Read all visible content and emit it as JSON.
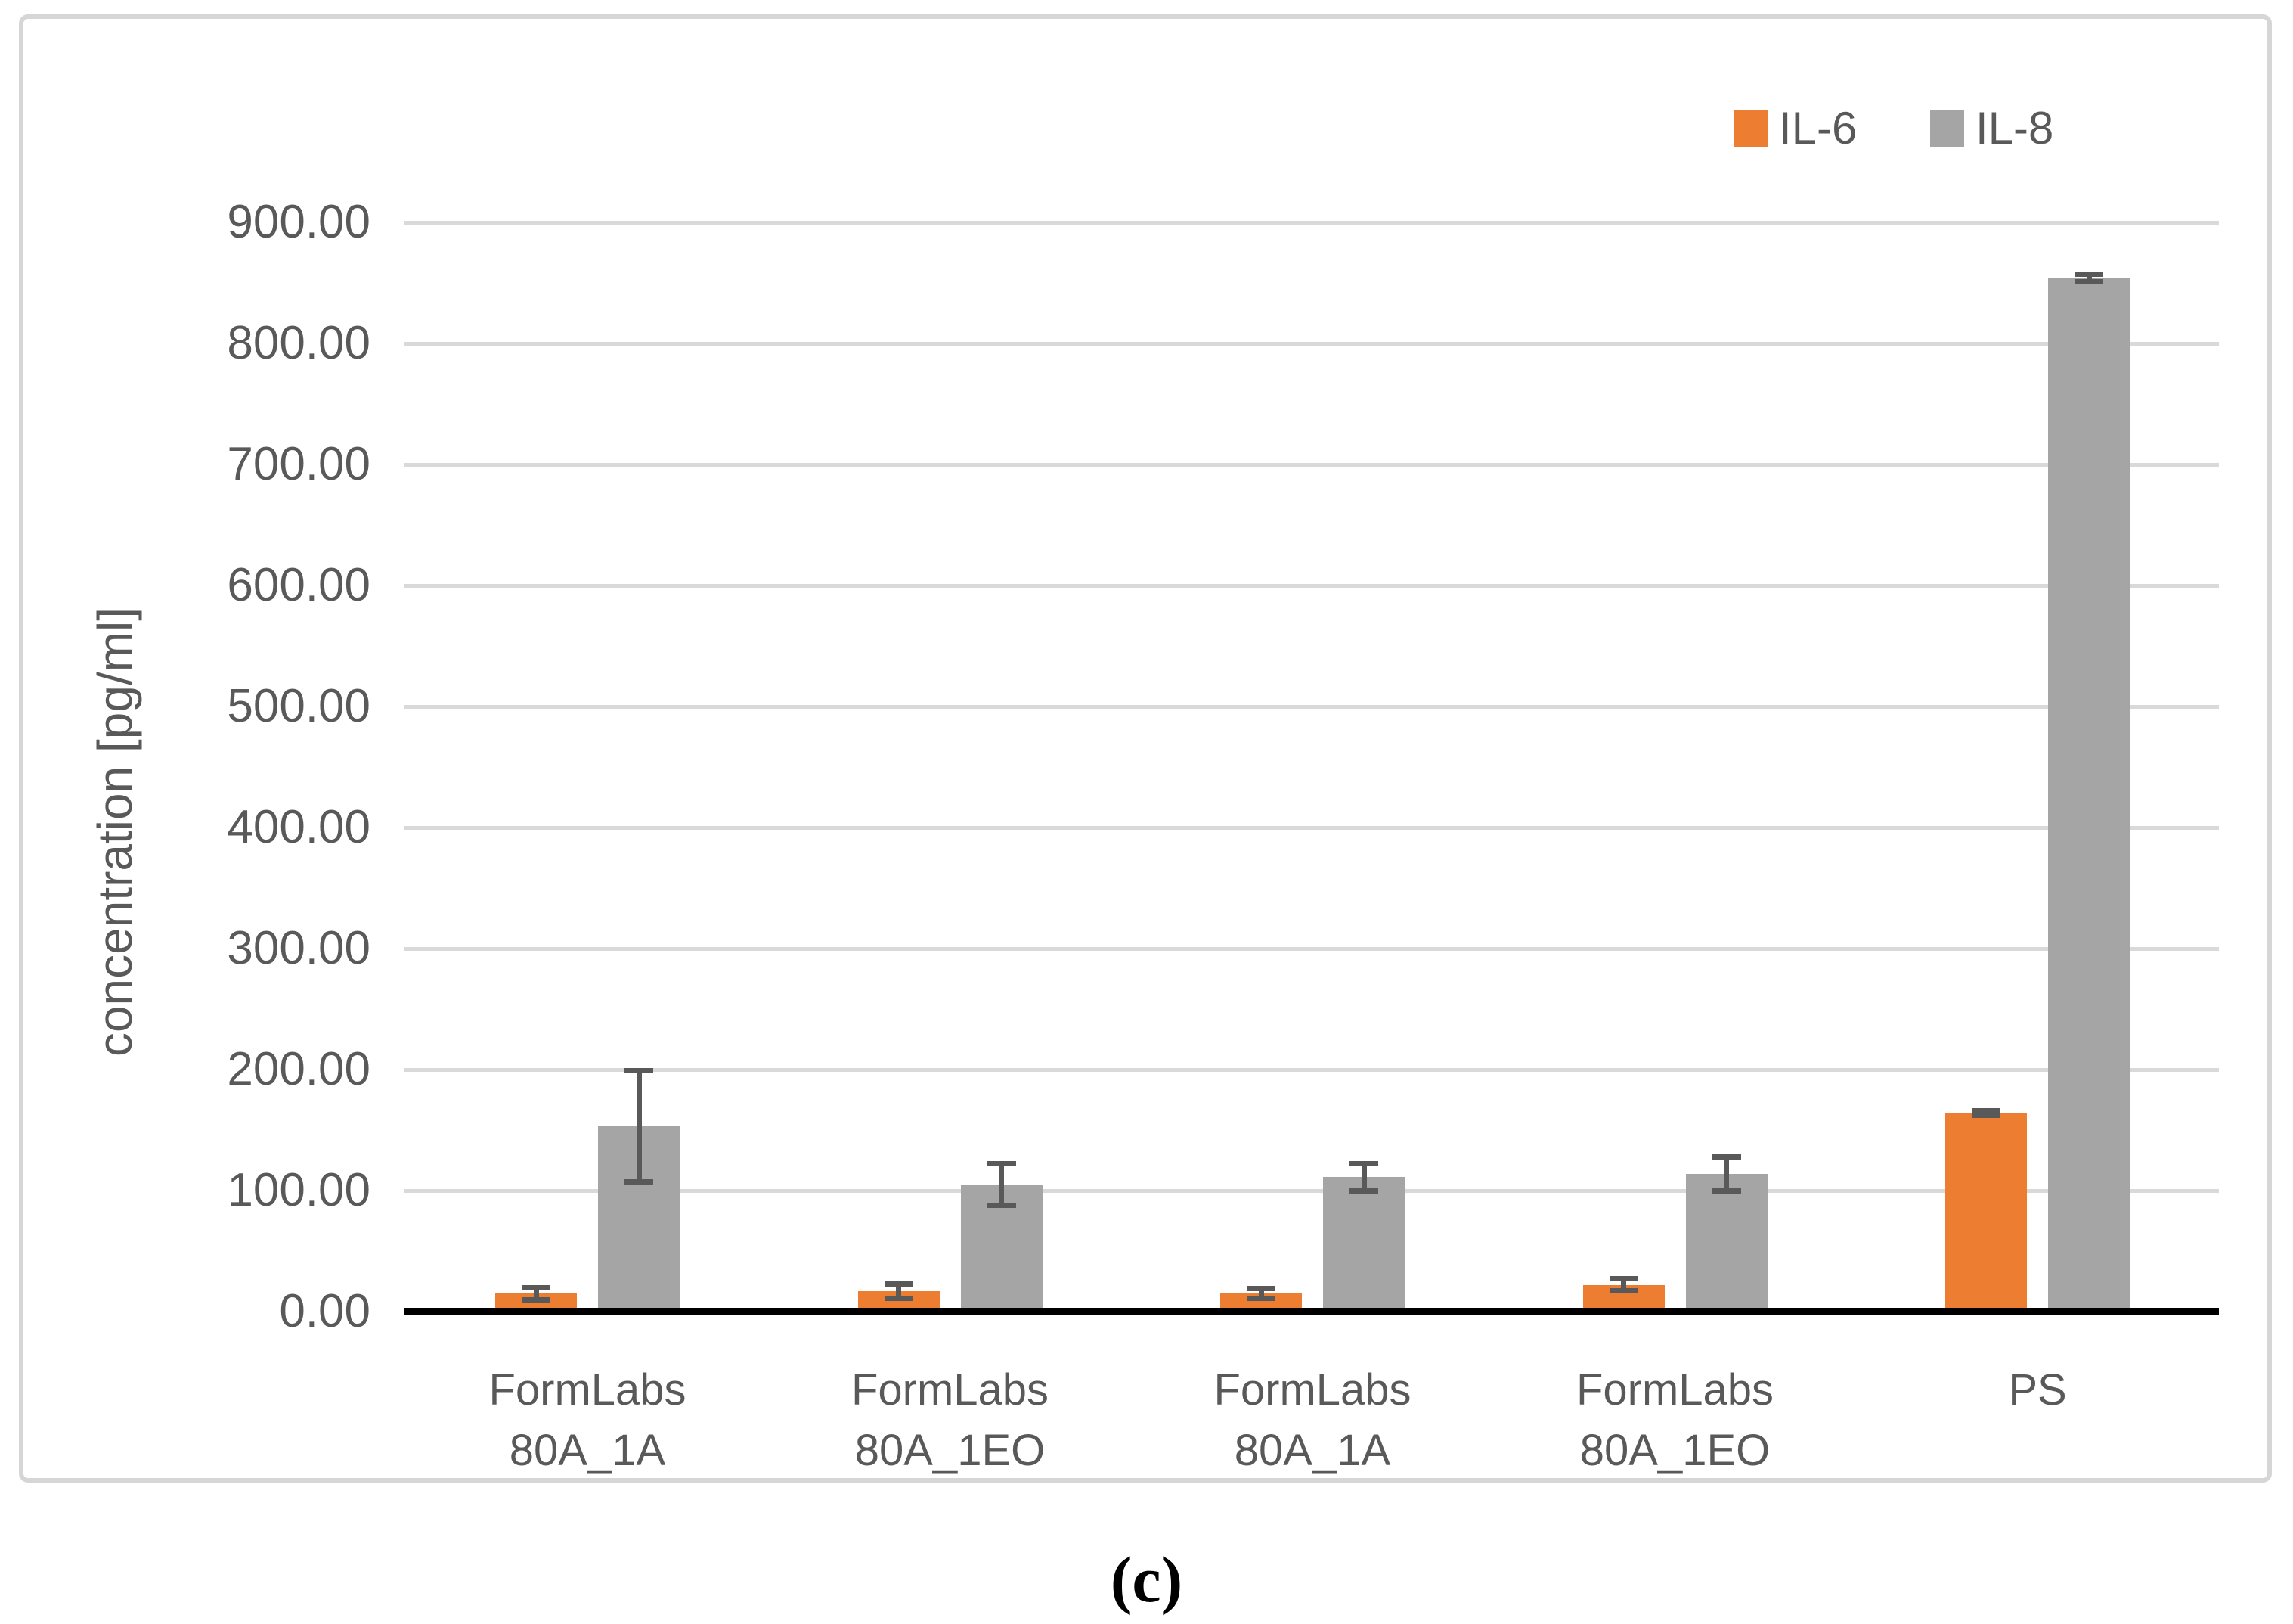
{
  "caption": "(c)",
  "legend": {
    "position": "top-right",
    "items": [
      {
        "label": "IL-6",
        "color": "#ED7D31"
      },
      {
        "label": "IL-8",
        "color": "#A5A5A5"
      }
    ]
  },
  "chart_data": {
    "type": "bar",
    "title": "",
    "xlabel": "",
    "ylabel": "concentration [pg/ml]",
    "ylim": [
      0,
      900
    ],
    "ytick_step": 100,
    "grid": true,
    "legend_position": "top-right",
    "yticks": [
      {
        "value": 0,
        "label": "0.00"
      },
      {
        "value": 100,
        "label": "100.00"
      },
      {
        "value": 200,
        "label": "200.00"
      },
      {
        "value": 300,
        "label": "300.00"
      },
      {
        "value": 400,
        "label": "400.00"
      },
      {
        "value": 500,
        "label": "500.00"
      },
      {
        "value": 600,
        "label": "600.00"
      },
      {
        "value": 700,
        "label": "700.00"
      },
      {
        "value": 800,
        "label": "800.00"
      },
      {
        "value": 900,
        "label": "900.00"
      }
    ],
    "categories": [
      "FormLabs 80A_1A",
      "FormLabs 80A_1EO",
      "FormLabs 80A_1A",
      "FormLabs 80A_1EO",
      "PS"
    ],
    "category_lines": [
      [
        "FormLabs",
        "80A_1A"
      ],
      [
        "FormLabs",
        "80A_1EO"
      ],
      [
        "FormLabs",
        "80A_1A"
      ],
      [
        "FormLabs",
        "80A_1EO"
      ],
      [
        "PS"
      ]
    ],
    "series": [
      {
        "name": "IL-6",
        "color": "#ED7D31",
        "values": [
          15,
          17,
          15,
          22,
          164
        ],
        "errors": [
          5,
          6,
          4,
          5,
          2
        ]
      },
      {
        "name": "IL-8",
        "color": "#A5A5A5",
        "values": [
          153,
          105,
          111,
          114,
          854
        ],
        "errors": [
          46,
          17,
          11,
          14,
          3
        ]
      }
    ],
    "error_bar_color": "#595959",
    "gridline_color": "#d9d9d9",
    "axis_line_color": "#000000"
  }
}
